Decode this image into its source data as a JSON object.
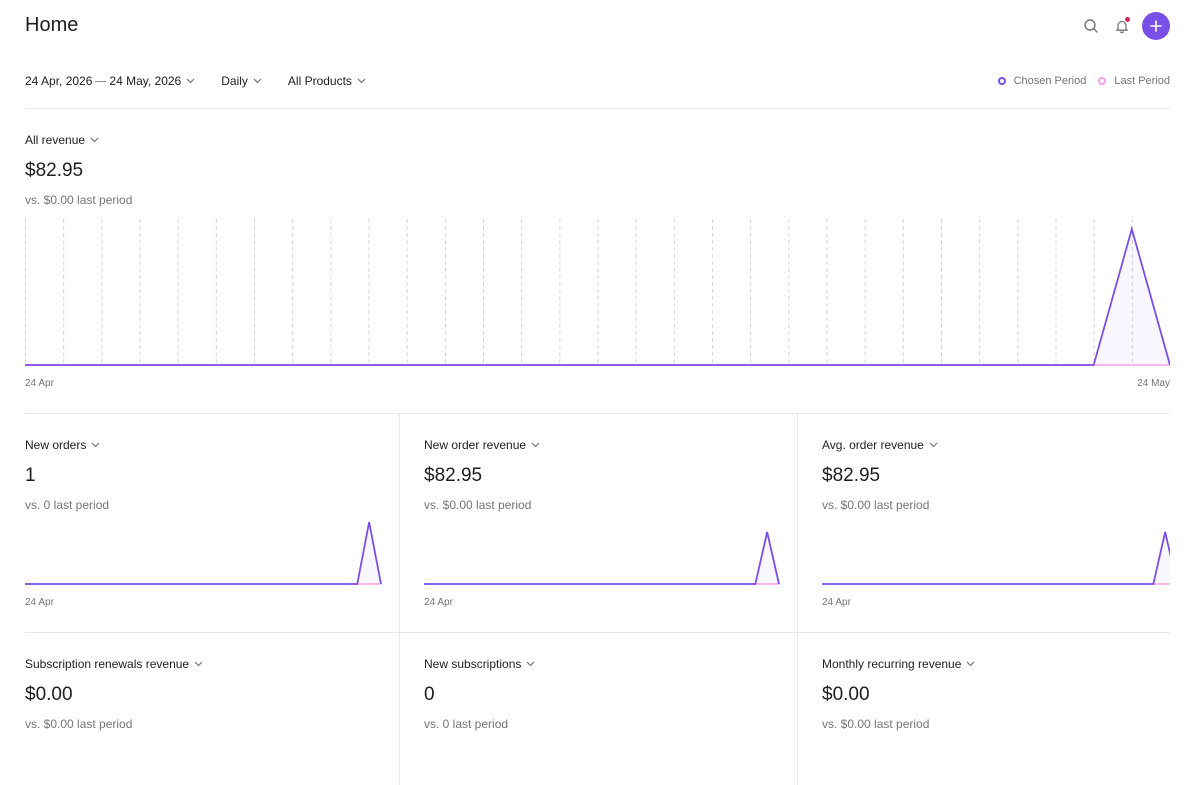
{
  "header": {
    "title": "Home"
  },
  "filters": {
    "date_start": "24 Apr, 2026",
    "date_end": "24 May, 2026",
    "interval": "Daily",
    "products": "All Products"
  },
  "legend": {
    "chosen": "Chosen Period",
    "last": "Last Period"
  },
  "colors": {
    "chosen": "#7a4fe6",
    "last": "#f5a0e6",
    "accent": "#7a4fe6"
  },
  "main_metric": {
    "label": "All revenue",
    "value": "$82.95",
    "compare": "vs. $0.00 last period"
  },
  "cards": [
    {
      "label": "New orders",
      "value": "1",
      "compare": "vs. 0 last period",
      "x_start": "24 Apr"
    },
    {
      "label": "New order revenue",
      "value": "$82.95",
      "compare": "vs. $0.00 last period",
      "x_start": "24 Apr"
    },
    {
      "label": "Avg. order revenue",
      "value": "$82.95",
      "compare": "vs. $0.00 last period",
      "x_start": "24 Apr"
    },
    {
      "label": "Subscription renewals revenue",
      "value": "$0.00",
      "compare": "vs. $0.00 last period"
    },
    {
      "label": "New subscriptions",
      "value": "0",
      "compare": "vs. 0 last period"
    },
    {
      "label": "Monthly recurring revenue",
      "value": "$0.00",
      "compare": "vs. $0.00 last period"
    }
  ],
  "chart_data": [
    {
      "type": "line",
      "x_start": "24 Apr",
      "x_end": "24 May",
      "series": [
        {
          "values": [
            0,
            0,
            0,
            0,
            0,
            0,
            0,
            0,
            0,
            0,
            0,
            0,
            0,
            0,
            0,
            0,
            0,
            0,
            0,
            0,
            0,
            0,
            0,
            0,
            0,
            0,
            0,
            0,
            0,
            82.95,
            0
          ]
        },
        {
          "values": [
            0,
            0,
            0,
            0,
            0,
            0,
            0,
            0,
            0,
            0,
            0,
            0,
            0,
            0,
            0,
            0,
            0,
            0,
            0,
            0,
            0,
            0,
            0,
            0,
            0,
            0,
            0,
            0,
            0,
            0,
            0
          ]
        }
      ],
      "grid": "vertical-dashed"
    },
    {
      "type": "line",
      "x_start": "24 Apr",
      "series": [
        {
          "values": [
            0,
            0,
            0,
            0,
            0,
            0,
            0,
            0,
            0,
            0,
            0,
            0,
            0,
            0,
            0,
            0,
            0,
            0,
            0,
            0,
            0,
            0,
            0,
            0,
            0,
            0,
            0,
            0,
            0,
            1,
            0
          ]
        },
        {
          "values": [
            0,
            0,
            0,
            0,
            0,
            0,
            0,
            0,
            0,
            0,
            0,
            0,
            0,
            0,
            0,
            0,
            0,
            0,
            0,
            0,
            0,
            0,
            0,
            0,
            0,
            0,
            0,
            0,
            0,
            0,
            0
          ]
        }
      ]
    },
    {
      "type": "line",
      "x_start": "24 Apr",
      "series": [
        {
          "values": [
            0,
            0,
            0,
            0,
            0,
            0,
            0,
            0,
            0,
            0,
            0,
            0,
            0,
            0,
            0,
            0,
            0,
            0,
            0,
            0,
            0,
            0,
            0,
            0,
            0,
            0,
            0,
            0,
            0,
            82.95,
            0
          ]
        },
        {
          "values": [
            0,
            0,
            0,
            0,
            0,
            0,
            0,
            0,
            0,
            0,
            0,
            0,
            0,
            0,
            0,
            0,
            0,
            0,
            0,
            0,
            0,
            0,
            0,
            0,
            0,
            0,
            0,
            0,
            0,
            0,
            0
          ]
        }
      ]
    },
    {
      "type": "line",
      "x_start": "24 Apr",
      "series": [
        {
          "values": [
            0,
            0,
            0,
            0,
            0,
            0,
            0,
            0,
            0,
            0,
            0,
            0,
            0,
            0,
            0,
            0,
            0,
            0,
            0,
            0,
            0,
            0,
            0,
            0,
            0,
            0,
            0,
            0,
            0,
            82.95,
            0
          ]
        },
        {
          "values": [
            0,
            0,
            0,
            0,
            0,
            0,
            0,
            0,
            0,
            0,
            0,
            0,
            0,
            0,
            0,
            0,
            0,
            0,
            0,
            0,
            0,
            0,
            0,
            0,
            0,
            0,
            0,
            0,
            0,
            0,
            0
          ]
        }
      ]
    }
  ]
}
